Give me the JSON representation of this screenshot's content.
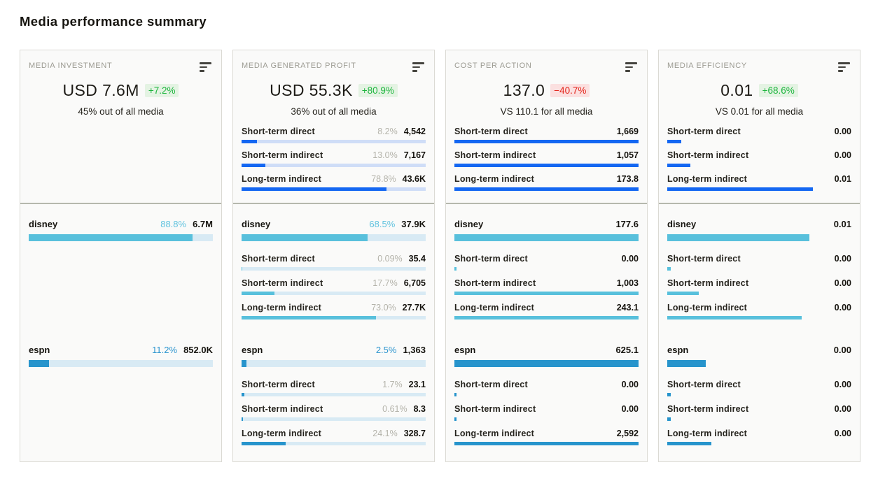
{
  "page_title": "Media performance summary",
  "colors": {
    "accent_blue": "#1467f2",
    "disney_teal": "#58c0dc",
    "espn_blue": "#2794cc",
    "track_teal": "#d8eaf4",
    "track_blue": "#cfddf7",
    "positive_text": "#1db53e",
    "positive_bg": "#e4f3e3",
    "negative_text": "#e3251b",
    "negative_bg": "#fbe0e0",
    "divider": "#b5b8ad",
    "card_border": "#dbdad4",
    "card_bg": "#fafaf9",
    "header_gray": "#9c9b92",
    "pct_gray": "#b4b3aa",
    "text_dark": "#1d1b16"
  },
  "cards": [
    {
      "header": "MEDIA INVESTMENT",
      "value": "USD 7.6M",
      "delta": "+7.2%",
      "subtitle": "45% out of all media",
      "channels": [
        {
          "name": "disney",
          "pct": "88.8%",
          "value": "6.7M",
          "bar": 88.8,
          "rows": []
        },
        {
          "name": "espn",
          "pct": "11.2%",
          "value": "852.0K",
          "bar": 11.2,
          "rows": []
        }
      ]
    },
    {
      "header": "MEDIA GENERATED PROFIT",
      "value": "USD 55.3K",
      "delta": "+80.9%",
      "subtitle": "36% out of all media",
      "summary_rows": [
        {
          "label": "Short-term direct",
          "pct": "8.2%",
          "value": "4,542",
          "bar": 8.2
        },
        {
          "label": "Short-term indirect",
          "pct": "13.0%",
          "value": "7,167",
          "bar": 13.0
        },
        {
          "label": "Long-term indirect",
          "pct": "78.8%",
          "value": "43.6K",
          "bar": 78.8
        }
      ],
      "channels": [
        {
          "name": "disney",
          "pct": "68.5%",
          "value": "37.9K",
          "bar": 68.5,
          "rows": [
            {
              "label": "Short-term direct",
              "pct": "0.09%",
              "value": "35.4",
              "bar": 0.4
            },
            {
              "label": "Short-term indirect",
              "pct": "17.7%",
              "value": "6,705",
              "bar": 17.7
            },
            {
              "label": "Long-term indirect",
              "pct": "73.0%",
              "value": "27.7K",
              "bar": 73.0
            }
          ]
        },
        {
          "name": "espn",
          "pct": "2.5%",
          "value": "1,363",
          "bar": 2.5,
          "rows": [
            {
              "label": "Short-term direct",
              "pct": "1.7%",
              "value": "23.1",
              "bar": 1.7
            },
            {
              "label": "Short-term indirect",
              "pct": "0.61%",
              "value": "8.3",
              "bar": 0.7
            },
            {
              "label": "Long-term indirect",
              "pct": "24.1%",
              "value": "328.7",
              "bar": 24.1
            }
          ]
        }
      ]
    },
    {
      "header": "COST PER ACTION",
      "value": "137.0",
      "delta": "−40.7%",
      "subtitle": "VS 110.1 for all media",
      "summary_rows": [
        {
          "label": "Short-term direct",
          "value": "1,669",
          "bar": 100
        },
        {
          "label": "Short-term indirect",
          "value": "1,057",
          "bar": 100
        },
        {
          "label": "Long-term indirect",
          "value": "173.8",
          "bar": 100
        }
      ],
      "channels": [
        {
          "name": "disney",
          "value": "177.6",
          "bar": 100,
          "rows": [
            {
              "label": "Short-term direct",
              "value": "0.00",
              "bar": 1
            },
            {
              "label": "Short-term indirect",
              "value": "1,003",
              "bar": 100
            },
            {
              "label": "Long-term indirect",
              "value": "243.1",
              "bar": 100
            }
          ]
        },
        {
          "name": "espn",
          "value": "625.1",
          "bar": 100,
          "rows": [
            {
              "label": "Short-term direct",
              "value": "0.00",
              "bar": 1
            },
            {
              "label": "Short-term indirect",
              "value": "0.00",
              "bar": 1
            },
            {
              "label": "Long-term indirect",
              "value": "2,592",
              "bar": 100
            }
          ]
        }
      ]
    },
    {
      "header": "MEDIA EFFICIENCY",
      "value": "0.01",
      "delta": "+68.6%",
      "subtitle": "VS 0.01 for all media",
      "summary_rows": [
        {
          "label": "Short-term direct",
          "value": "0.00",
          "bar": 7.5
        },
        {
          "label": "Short-term indirect",
          "value": "0.00",
          "bar": 12.5
        },
        {
          "label": "Long-term indirect",
          "value": "0.01",
          "bar": 79
        }
      ],
      "channels": [
        {
          "name": "disney",
          "value": "0.01",
          "bar": 77,
          "rows": [
            {
              "label": "Short-term direct",
              "value": "0.00",
              "bar": 2
            },
            {
              "label": "Short-term indirect",
              "value": "0.00",
              "bar": 17
            },
            {
              "label": "Long-term indirect",
              "value": "0.00",
              "bar": 73
            }
          ]
        },
        {
          "name": "espn",
          "value": "0.00",
          "bar": 21,
          "rows": [
            {
              "label": "Short-term direct",
              "value": "0.00",
              "bar": 2
            },
            {
              "label": "Short-term indirect",
              "value": "0.00",
              "bar": 2
            },
            {
              "label": "Long-term indirect",
              "value": "0.00",
              "bar": 24
            }
          ]
        }
      ]
    }
  ]
}
